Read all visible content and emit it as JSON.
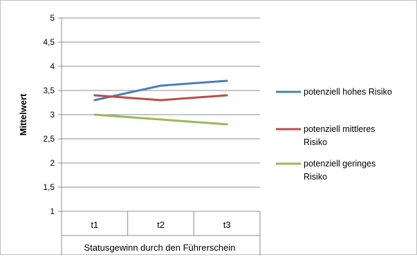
{
  "chart_data": {
    "type": "line",
    "categories": [
      "t1",
      "t2",
      "t3"
    ],
    "xlabel": "Statusgewinn durch den Führerschein",
    "ylabel": "Mittelwert",
    "ylim": [
      1,
      5
    ],
    "yticks": [
      "1",
      "1,5",
      "2",
      "2,5",
      "3",
      "3,5",
      "4",
      "4,5",
      "5"
    ],
    "ytick_values": [
      1,
      1.5,
      2,
      2.5,
      3,
      3.5,
      4,
      4.5,
      5
    ],
    "grid": "horizontal",
    "legend_position": "right",
    "series": [
      {
        "name": "potenziell hohes Risiko",
        "name_lines": [
          "potenziell hohes Risiko"
        ],
        "color": "#4a7ebb",
        "values": [
          3.3,
          3.6,
          3.7
        ]
      },
      {
        "name": "potenziell mittleres Risiko",
        "name_lines": [
          "potenziell mittleres",
          "Risiko"
        ],
        "color": "#be4b48",
        "values": [
          3.4,
          3.3,
          3.4
        ]
      },
      {
        "name": "potenziell geringes Risiko",
        "name_lines": [
          "potenziell geringes",
          "Risiko"
        ],
        "color": "#98b954",
        "values": [
          3.0,
          2.9,
          2.8
        ]
      }
    ]
  }
}
